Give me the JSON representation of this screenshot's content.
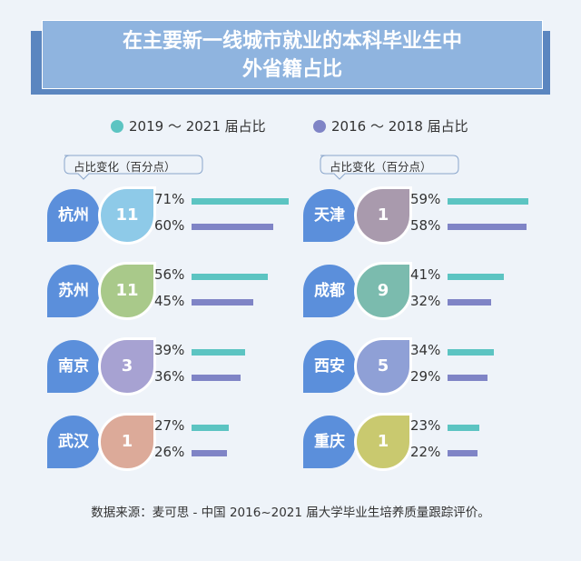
{
  "title": {
    "line1": "在主要新一线城市就业的本科毕业生中",
    "line2": "外省籍占比"
  },
  "legend": {
    "a": {
      "label": "2019 ～ 2021 届占比",
      "color": "#5cc4c2"
    },
    "b": {
      "label": "2016 ～ 2018 届占比",
      "color": "#7f84c6"
    }
  },
  "hint": {
    "left": "占比变化（百分点）",
    "right": "占比变化（百分点）"
  },
  "chart_data": {
    "type": "bar",
    "title": "在主要新一线城市就业的本科毕业生中外省籍占比",
    "unit": "%",
    "series": [
      {
        "name": "2019 ～ 2021 届占比"
      },
      {
        "name": "2016 ～ 2018 届占比"
      }
    ],
    "cities": [
      {
        "name": "杭州",
        "change": 11,
        "a": 71,
        "b": 60,
        "color": "#8ecae8"
      },
      {
        "name": "苏州",
        "change": 11,
        "a": 56,
        "b": 45,
        "color": "#a9c98a"
      },
      {
        "name": "南京",
        "change": 3,
        "a": 39,
        "b": 36,
        "color": "#a7a2d2"
      },
      {
        "name": "武汉",
        "change": 1,
        "a": 27,
        "b": 26,
        "color": "#dcaa99"
      },
      {
        "name": "天津",
        "change": 1,
        "a": 59,
        "b": 58,
        "color": "#a99aad"
      },
      {
        "name": "成都",
        "change": 9,
        "a": 41,
        "b": 32,
        "color": "#7bbbae"
      },
      {
        "name": "西安",
        "change": 5,
        "a": 34,
        "b": 29,
        "color": "#8fa0d6"
      },
      {
        "name": "重庆",
        "change": 1,
        "a": 23,
        "b": 22,
        "color": "#c9c96f"
      }
    ]
  },
  "source": "数据来源：麦可思 - 中国 2016~2021 届大学毕业生培养质量跟踪评价。"
}
